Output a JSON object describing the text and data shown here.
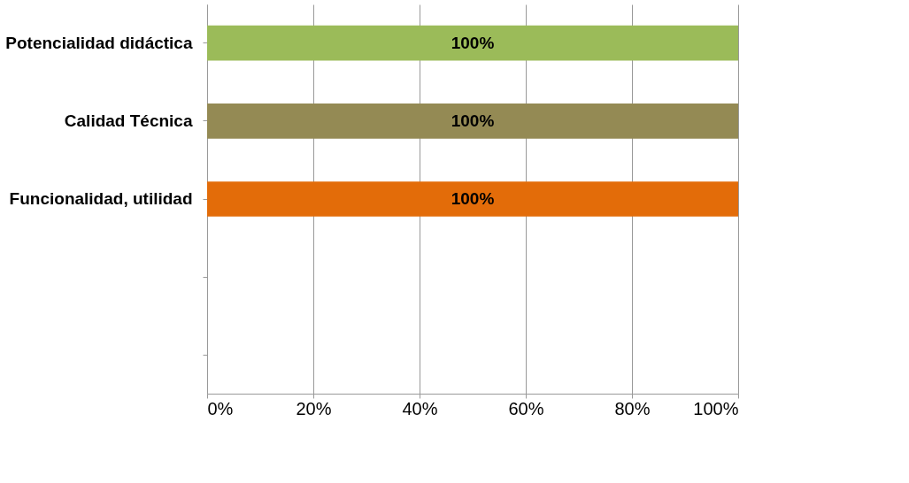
{
  "chart_data": {
    "type": "bar",
    "orientation": "horizontal",
    "categories": [
      "Potencialidad didáctica",
      "Calidad Técnica",
      "Funcionalidad, utilidad",
      null,
      null
    ],
    "values": [
      100,
      100,
      100,
      null,
      null
    ],
    "colors": [
      "#9bbb59",
      "#948a54",
      "#e36c09",
      null,
      null
    ],
    "value_labels": [
      "100%",
      "100%",
      "100%",
      null,
      null
    ],
    "xlim": [
      0,
      100
    ],
    "xticks": [
      {
        "value": 0,
        "label": "0%"
      },
      {
        "value": 20,
        "label": "20%"
      },
      {
        "value": 40,
        "label": "40%"
      },
      {
        "value": 60,
        "label": "60%"
      },
      {
        "value": 80,
        "label": "80%"
      },
      {
        "value": 100,
        "label": "100%"
      }
    ],
    "grid": "x"
  }
}
